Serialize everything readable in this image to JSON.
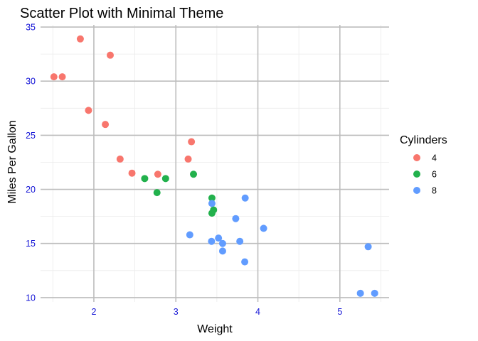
{
  "chart_data": {
    "type": "scatter",
    "title": "Scatter Plot with Minimal Theme",
    "xlabel": "Weight",
    "ylabel": "Miles Per Gallon",
    "xlim": [
      1.35,
      5.6
    ],
    "ylim": [
      9.6,
      35.2
    ],
    "x_ticks": [
      2,
      3,
      4,
      5
    ],
    "y_ticks": [
      10,
      15,
      20,
      25,
      30,
      35
    ],
    "x_minor": [
      1.5,
      2.5,
      3.5,
      4.5,
      5.5
    ],
    "y_minor": [
      12.5,
      17.5,
      22.5,
      27.5,
      32.5
    ],
    "grid": true,
    "tick_color": "#1515d6",
    "legend": {
      "title": "Cylinders",
      "position": "right"
    },
    "series": [
      {
        "name": "4",
        "color": "#f8766d",
        "points": [
          [
            1.835,
            33.9
          ],
          [
            2.2,
            32.4
          ],
          [
            1.513,
            30.4
          ],
          [
            1.615,
            30.4
          ],
          [
            1.935,
            27.3
          ],
          [
            2.14,
            26.0
          ],
          [
            3.19,
            24.4
          ],
          [
            2.32,
            22.8
          ],
          [
            3.15,
            22.8
          ],
          [
            2.465,
            21.5
          ],
          [
            2.78,
            21.4
          ]
        ]
      },
      {
        "name": "6",
        "color": "#22b14c",
        "points": [
          [
            2.62,
            21.0
          ],
          [
            2.875,
            21.0
          ],
          [
            3.215,
            21.4
          ],
          [
            2.77,
            19.7
          ],
          [
            3.44,
            19.2
          ],
          [
            3.46,
            18.1
          ],
          [
            3.44,
            17.8
          ]
        ]
      },
      {
        "name": "8",
        "color": "#619cff",
        "points": [
          [
            3.44,
            18.7
          ],
          [
            3.57,
            14.3
          ],
          [
            3.73,
            17.3
          ],
          [
            3.78,
            15.2
          ],
          [
            4.07,
            16.4
          ],
          [
            5.25,
            10.4
          ],
          [
            5.424,
            10.4
          ],
          [
            5.345,
            14.7
          ],
          [
            3.52,
            15.5
          ],
          [
            3.435,
            15.2
          ],
          [
            3.84,
            13.3
          ],
          [
            3.845,
            19.2
          ],
          [
            3.17,
            15.8
          ],
          [
            3.57,
            15.0
          ]
        ]
      }
    ]
  }
}
